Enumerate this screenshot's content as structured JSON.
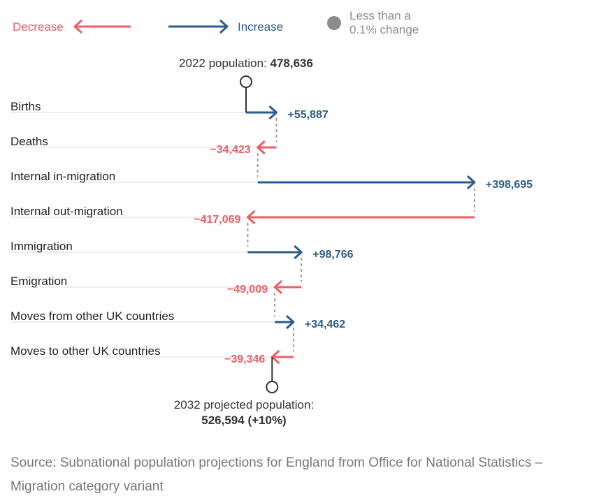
{
  "legend": {
    "decrease": "Decrease",
    "increase": "Increase",
    "small_line1": "Less than a",
    "small_line2": "0.1% change"
  },
  "colors": {
    "increase": "#2b5c8a",
    "decrease": "#ef5e66",
    "neutral": "#8c8c8c",
    "connector": "#9a9a9a",
    "marker": "#333333",
    "baseline": "#dddddd"
  },
  "start": {
    "label": "2022 population: ",
    "value": "478,636"
  },
  "end": {
    "label": "2032 projected population:",
    "value": "526,594 (+10%)"
  },
  "chart_data": {
    "type": "waterfall",
    "start_value": 478636,
    "end_value": 526594,
    "items": [
      {
        "label": "Births",
        "value": 55887,
        "display": "+55,887"
      },
      {
        "label": "Deaths",
        "value": -34423,
        "display": "−34,423"
      },
      {
        "label": "Internal in-migration",
        "value": 398695,
        "display": "+398,695"
      },
      {
        "label": "Internal out-migration",
        "value": -417069,
        "display": "−417,069"
      },
      {
        "label": "Immigration",
        "value": 98766,
        "display": "+98,766"
      },
      {
        "label": "Emigration",
        "value": -49009,
        "display": "−49,009"
      },
      {
        "label": "Moves from other UK countries",
        "value": 34462,
        "display": "+34,462"
      },
      {
        "label": "Moves to other UK countries",
        "value": -39346,
        "display": "−39,346"
      }
    ]
  },
  "source": "Source: Subnational population projections for England from Office for National Statistics – Migration category variant"
}
